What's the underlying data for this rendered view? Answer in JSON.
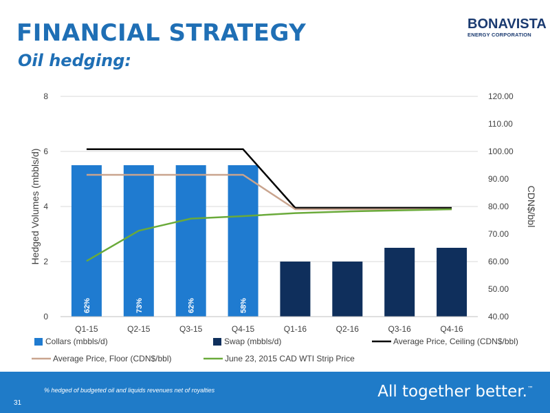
{
  "header": {
    "title": "FINANCIAL STRATEGY",
    "subtitle": "Oil hedging:"
  },
  "logo": {
    "name": "BONAVISTA",
    "tagline": "ENERGY CORPORATION"
  },
  "footer": {
    "footnote": "% hedged of budgeted oil and liquids revenues net of royalties",
    "page_number": "31",
    "tagline": "All together better.",
    "trademark": "™"
  },
  "chart_data": {
    "type": "bar",
    "categories": [
      "Q1-15",
      "Q2-15",
      "Q3-15",
      "Q4-15",
      "Q1-16",
      "Q2-16",
      "Q3-16",
      "Q4-16"
    ],
    "ylabel": "Hedged Volumes (mbbls/d)",
    "ylabel_right": "CDN$/bbl",
    "ylim": [
      0,
      8
    ],
    "yticks": [
      "0",
      "2",
      "4",
      "6",
      "8"
    ],
    "ylim_right": [
      40,
      120
    ],
    "yticks_right": [
      "40.00",
      "50.00",
      "60.00",
      "70.00",
      "80.00",
      "90.00",
      "100.00",
      "110.00",
      "120.00"
    ],
    "grid": true,
    "legend_position": "bottom",
    "bars": [
      {
        "name": "Collars (mbbls/d)",
        "color": "#1f7bd0",
        "values": [
          5.5,
          5.5,
          5.5,
          5.5,
          null,
          null,
          null,
          null
        ]
      },
      {
        "name": "Swap (mbbls/d)",
        "color": "#0f2f5c",
        "values": [
          null,
          null,
          null,
          null,
          2.0,
          2.0,
          2.5,
          2.5
        ]
      }
    ],
    "lines": [
      {
        "name": "Average Price, Ceiling (CDN$/bbl)",
        "color": "#000000",
        "axis": "right",
        "values": [
          100.8,
          100.8,
          100.8,
          100.8,
          79.5,
          79.5,
          79.5,
          79.5
        ]
      },
      {
        "name": "Average Price, Floor (CDN$/bbl)",
        "color": "#c9a48e",
        "axis": "right",
        "values": [
          91.5,
          91.5,
          91.5,
          91.5,
          79.0,
          79.0,
          79.0,
          79.0
        ]
      },
      {
        "name": "June 23, 2015 CAD WTI Strip Price",
        "color": "#6aaa3a",
        "axis": "right",
        "values": [
          60.2,
          71.2,
          75.6,
          76.5,
          77.6,
          78.2,
          78.6,
          79.0
        ]
      }
    ],
    "bar_labels": [
      "62%",
      "73%",
      "62%",
      "58%"
    ]
  }
}
